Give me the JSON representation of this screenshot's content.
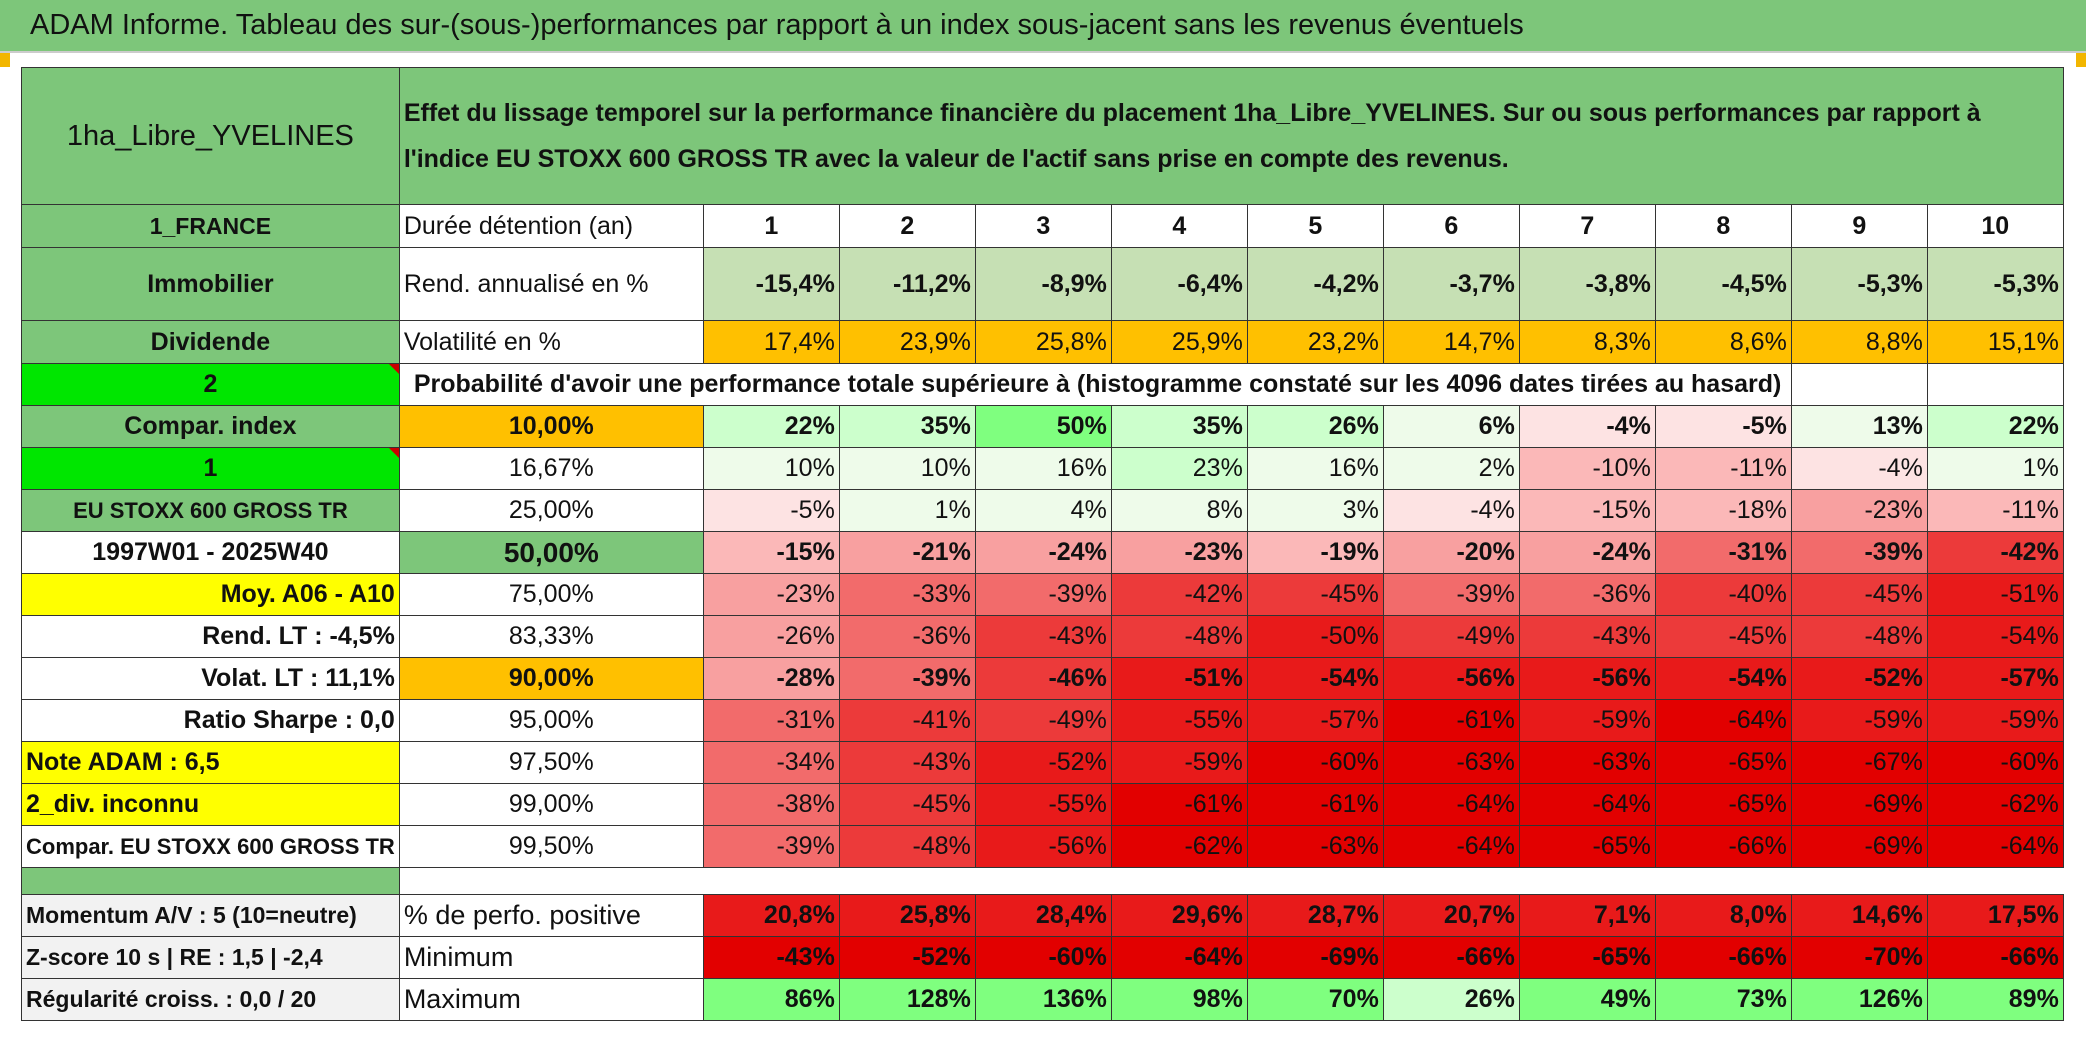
{
  "title": "ADAM Informe. Tableau des sur-(sous-)performances par rapport à un index sous-jacent sans les revenus éventuels",
  "fund": "1ha_Libre_YVELINES",
  "description": "Effet du lissage temporel sur la performance financière du placement 1ha_Libre_YVELINES. Sur ou sous performances par rapport à l'indice EU STOXX 600 GROSS TR avec la valeur de l'actif sans prise en compte des revenus.",
  "side": {
    "country": "1_FRANCE",
    "type": "Immobilier",
    "dividend": "Dividende",
    "two": "2",
    "compar": "Compar. index",
    "one": "1",
    "index_name": "EU STOXX 600 GROSS TR",
    "period": "1997W01 - 2025W40",
    "moy": "Moy. A06 - A10",
    "rend_lt": "Rend. LT :    -4,5%",
    "volat_lt": "Volat. LT :   11,1%",
    "sharpe": "Ratio Sharpe :    0,0",
    "note": "Note ADAM : 6,5",
    "div": "2_div. inconnu",
    "compar_full": "Compar. EU STOXX 600 GROSS TR",
    "momentum": "Momentum A/V : 5 (10=neutre)",
    "zscore": "Z-score 10 s | RE : 1,5 | -2,4",
    "regularite": "Régularité croiss. : 0,0 / 20"
  },
  "labels": {
    "duree": "Durée détention (an)",
    "rend": "Rend. annualisé en %",
    "volat": "Volatilité en %",
    "proba": "Probabilité d'avoir une performance totale supérieure à (histogramme constaté sur les 4096 dates tirées au hasard)",
    "positive": "% de perfo. positive",
    "minimum": "Minimum",
    "maximum": "Maximum"
  },
  "years": [
    "1",
    "2",
    "3",
    "4",
    "5",
    "6",
    "7",
    "8",
    "9",
    "10"
  ],
  "rend": [
    "-15,4%",
    "-11,2%",
    "-8,9%",
    "-6,4%",
    "-4,2%",
    "-3,7%",
    "-3,8%",
    "-4,5%",
    "-5,3%",
    "-5,3%"
  ],
  "volat": [
    "17,4%",
    "23,9%",
    "25,8%",
    "25,9%",
    "23,2%",
    "14,7%",
    "8,3%",
    "8,6%",
    "8,8%",
    "15,1%"
  ],
  "percentiles": [
    {
      "p": "10,00%",
      "v": [
        "22%",
        "35%",
        "50%",
        "35%",
        "26%",
        "6%",
        "-4%",
        "-5%",
        "13%",
        "22%"
      ]
    },
    {
      "p": "16,67%",
      "v": [
        "10%",
        "10%",
        "16%",
        "23%",
        "16%",
        "2%",
        "-10%",
        "-11%",
        "-4%",
        "1%"
      ]
    },
    {
      "p": "25,00%",
      "v": [
        "-5%",
        "1%",
        "4%",
        "8%",
        "3%",
        "-4%",
        "-15%",
        "-18%",
        "-23%",
        "-11%"
      ]
    },
    {
      "p": "50,00%",
      "v": [
        "-15%",
        "-21%",
        "-24%",
        "-23%",
        "-19%",
        "-20%",
        "-24%",
        "-31%",
        "-39%",
        "-42%"
      ]
    },
    {
      "p": "75,00%",
      "v": [
        "-23%",
        "-33%",
        "-39%",
        "-42%",
        "-45%",
        "-39%",
        "-36%",
        "-40%",
        "-45%",
        "-51%"
      ]
    },
    {
      "p": "83,33%",
      "v": [
        "-26%",
        "-36%",
        "-43%",
        "-48%",
        "-50%",
        "-49%",
        "-43%",
        "-45%",
        "-48%",
        "-54%"
      ]
    },
    {
      "p": "90,00%",
      "v": [
        "-28%",
        "-39%",
        "-46%",
        "-51%",
        "-54%",
        "-56%",
        "-56%",
        "-54%",
        "-52%",
        "-57%"
      ]
    },
    {
      "p": "95,00%",
      "v": [
        "-31%",
        "-41%",
        "-49%",
        "-55%",
        "-57%",
        "-61%",
        "-59%",
        "-64%",
        "-59%",
        "-59%"
      ]
    },
    {
      "p": "97,50%",
      "v": [
        "-34%",
        "-43%",
        "-52%",
        "-59%",
        "-60%",
        "-63%",
        "-63%",
        "-65%",
        "-67%",
        "-60%"
      ]
    },
    {
      "p": "99,00%",
      "v": [
        "-38%",
        "-45%",
        "-55%",
        "-61%",
        "-61%",
        "-64%",
        "-64%",
        "-65%",
        "-69%",
        "-62%"
      ]
    },
    {
      "p": "99,50%",
      "v": [
        "-39%",
        "-48%",
        "-56%",
        "-62%",
        "-63%",
        "-64%",
        "-65%",
        "-66%",
        "-69%",
        "-64%"
      ]
    }
  ],
  "positive": [
    "20,8%",
    "25,8%",
    "28,4%",
    "29,6%",
    "28,7%",
    "20,7%",
    "7,1%",
    "8,0%",
    "14,6%",
    "17,5%"
  ],
  "minimum": [
    "-43%",
    "-52%",
    "-60%",
    "-64%",
    "-69%",
    "-66%",
    "-65%",
    "-66%",
    "-70%",
    "-66%"
  ],
  "maximum": [
    "86%",
    "128%",
    "136%",
    "98%",
    "70%",
    "26%",
    "49%",
    "73%",
    "126%",
    "89%"
  ],
  "colors": {
    "header_green": "#7dc67a",
    "bright_green": "#00e600",
    "orange": "#ffc000",
    "yellow": "#ffff00",
    "red_text": "#d40000"
  }
}
